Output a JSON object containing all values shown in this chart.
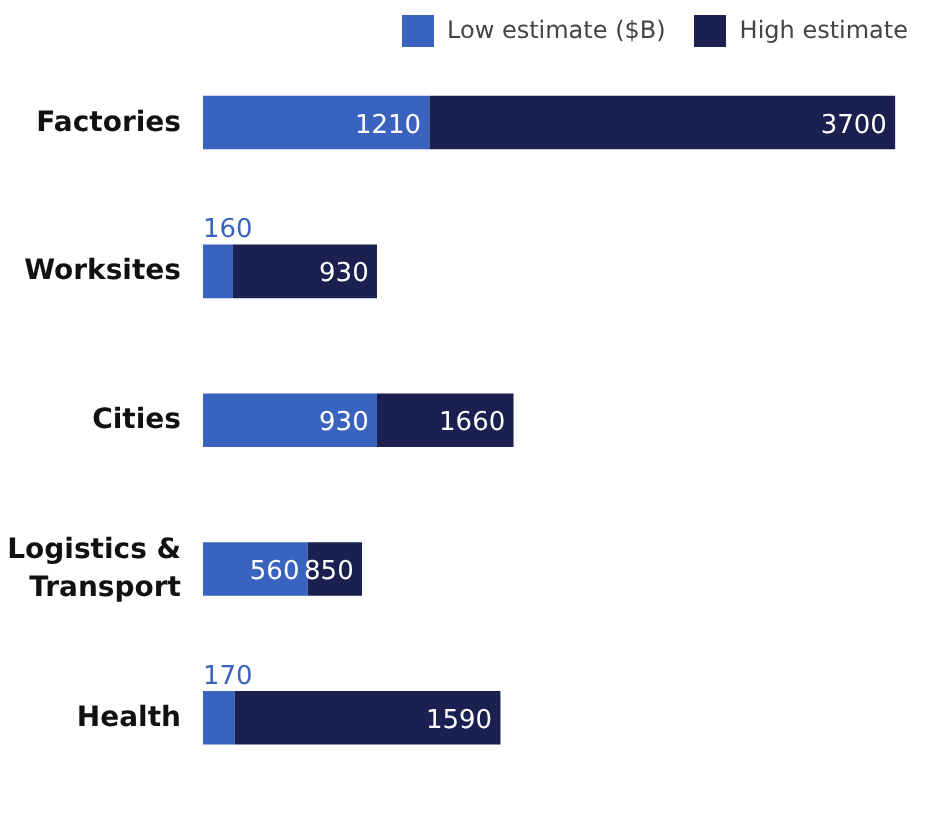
{
  "chart_data": {
    "type": "bar",
    "orientation": "horizontal",
    "stacked": true,
    "legend": "top",
    "categories": [
      "Factories",
      "Worksites",
      "Cities",
      "Logistics &\nTransport",
      "Health"
    ],
    "series": [
      {
        "name": "Low estimate ($B)",
        "color": "#3a63c0",
        "values": [
          1210,
          160,
          930,
          560,
          170
        ],
        "value_labels": [
          "1210",
          "160",
          "930",
          "560",
          "170"
        ]
      },
      {
        "name": "High estimate",
        "color": "#1a2150",
        "values": [
          2490,
          770,
          730,
          290,
          1420
        ]
      }
    ],
    "totals": [
      "3700",
      "930",
      "1660",
      "850",
      "1590"
    ]
  }
}
